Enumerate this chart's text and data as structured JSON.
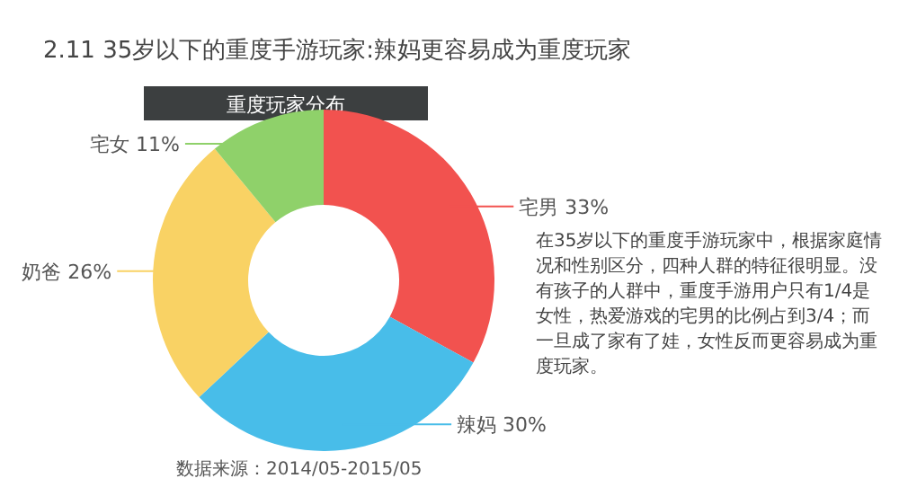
{
  "chart_data": {
    "type": "donut",
    "title": "2.11 35岁以下的重度手游玩家:辣妈更容易成为重度玩家",
    "subtitle": "重度玩家分布",
    "categories": [
      "宅男",
      "辣妈",
      "奶爸",
      "宅女"
    ],
    "values": [
      33,
      30,
      26,
      11
    ],
    "colors": [
      "#f2524f",
      "#48bde9",
      "#f9d264",
      "#8fd16a"
    ],
    "value_labels": [
      "33%",
      "30%",
      "26%",
      "11%"
    ],
    "annotations": [
      "在35岁以下的重度手游玩家中，根据家庭情况和性别区分，四种人群的特征很明显。没有孩子的人群中，重度手游用户只有1/4是女性，热爱游戏的宅男的比例占到3/4；而一旦成了家有了娃，女性反而更容易成为重度玩家。",
      "数据来源：2014/05-2015/05"
    ]
  }
}
